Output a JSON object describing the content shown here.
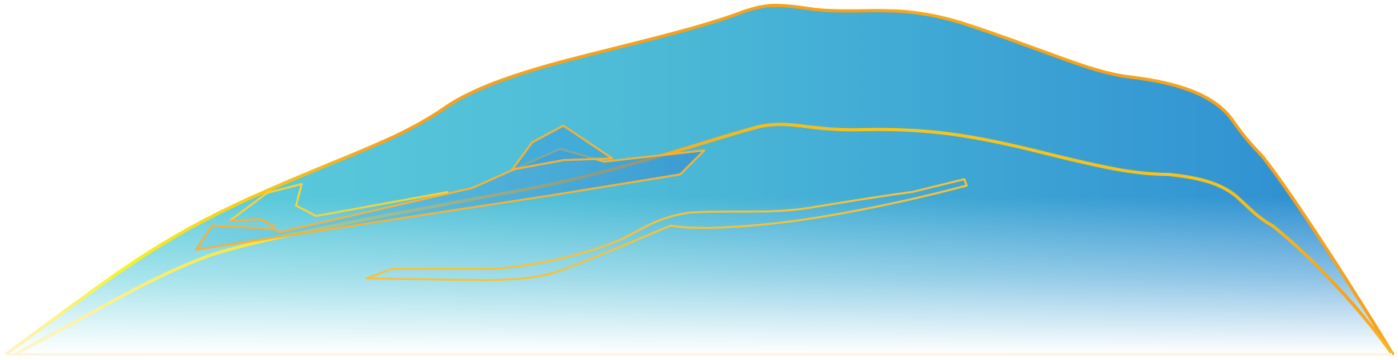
{
  "artwork": {
    "colors": {
      "fill_left": "#5ccbdb",
      "fill_mid": "#49b4d6",
      "fill_right": "#2f8fd2",
      "fade_bottom": "#ffffff",
      "outline_orange": "#f5a11c",
      "outline_yellow": "#f7f21a",
      "outline_pale": "#fff3c8"
    },
    "icon": "stylized-mountain-with-boat-outlines"
  }
}
